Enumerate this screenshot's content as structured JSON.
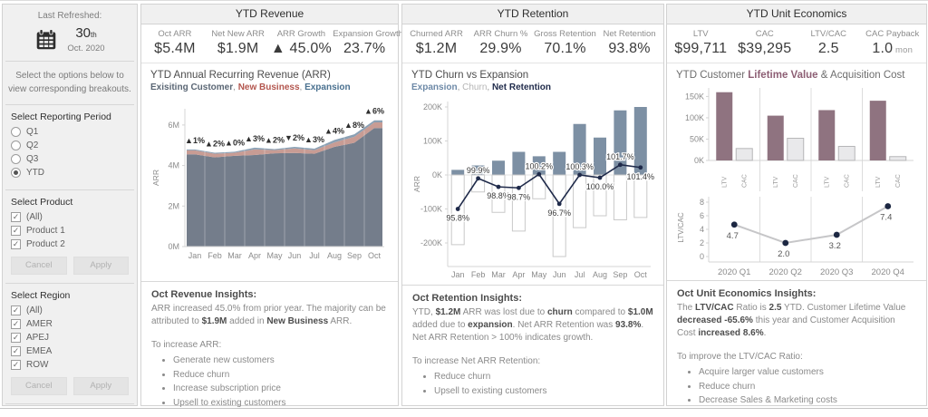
{
  "sidebar": {
    "last_refreshed_label": "Last Refreshed:",
    "date_day": "30",
    "date_suffix": "th",
    "date_rest": "Oct. 2020",
    "instruction": "Select the options below to view corresponding breakouts.",
    "reporting_period": {
      "label": "Select Reporting Period",
      "options": [
        {
          "label": "Q1",
          "selected": false
        },
        {
          "label": "Q2",
          "selected": false
        },
        {
          "label": "Q3",
          "selected": false
        },
        {
          "label": "YTD",
          "selected": true
        }
      ]
    },
    "product": {
      "label": "Select Product",
      "options": [
        {
          "label": "(All)",
          "checked": true
        },
        {
          "label": "Product 1",
          "checked": true
        },
        {
          "label": "Product 2",
          "checked": true
        }
      ],
      "cancel_label": "Cancel",
      "apply_label": "Apply"
    },
    "region": {
      "label": "Select Region",
      "options": [
        {
          "label": "(All)",
          "checked": true
        },
        {
          "label": "AMER",
          "checked": true
        },
        {
          "label": "APEJ",
          "checked": true
        },
        {
          "label": "EMEA",
          "checked": true
        },
        {
          "label": "ROW",
          "checked": true
        }
      ],
      "cancel_label": "Cancel",
      "apply_label": "Apply"
    }
  },
  "revenue_panel": {
    "title": "YTD Revenue",
    "kpis": [
      {
        "label": "Oct ARR",
        "value": "$5.4M"
      },
      {
        "label": "Net New ARR",
        "value": "$1.9M"
      },
      {
        "label": "ARR Growth",
        "value": "▲ 45.0%"
      },
      {
        "label": "Expansion Growth",
        "value": "23.7%"
      }
    ],
    "insights": {
      "heading": "Oct Revenue Insights:",
      "body": [
        {
          "t": "ARR increased 45.0% from prior year. The majority can be attributed to "
        },
        {
          "t": "$1.9M",
          "b": true
        },
        {
          "t": " added in "
        },
        {
          "t": "New Business",
          "b": true
        },
        {
          "t": " ARR."
        }
      ],
      "intro": "To increase ARR:",
      "bullets": [
        "Generate new customers",
        "Reduce churn",
        "Increase subscription price",
        "Upsell to existing customers"
      ]
    }
  },
  "retention_panel": {
    "title": "YTD Retention",
    "kpis": [
      {
        "label": "Churned ARR",
        "value": "$1.2M"
      },
      {
        "label": "ARR Churn %",
        "value": "29.9%"
      },
      {
        "label": "Gross Retention",
        "value": "70.1%"
      },
      {
        "label": "Net Retention",
        "value": "93.8%"
      }
    ],
    "insights": {
      "heading": "Oct Retention Insights:",
      "body": [
        {
          "t": "YTD, "
        },
        {
          "t": "$1.2M",
          "b": true
        },
        {
          "t": " ARR was lost due to "
        },
        {
          "t": "churn",
          "b": true
        },
        {
          "t": " compared to "
        },
        {
          "t": "$1.0M",
          "b": true
        },
        {
          "t": " added due to "
        },
        {
          "t": "expansion",
          "b": true
        },
        {
          "t": ". Net ARR Retention was "
        },
        {
          "t": "93.8%",
          "b": true
        },
        {
          "t": ". Net ARR Retention > 100% indicates growth."
        }
      ],
      "intro": "To increase Net ARR Retention:",
      "bullets": [
        "Reduce churn",
        "Upsell to existing customers"
      ]
    }
  },
  "unit_panel": {
    "title": "YTD Unit Economics",
    "kpis": [
      {
        "label": "LTV",
        "value": "$99,711"
      },
      {
        "label": "CAC",
        "value": "$39,295"
      },
      {
        "label": "LTV/CAC",
        "value": "2.5"
      },
      {
        "label": "CAC Payback",
        "value": "1.0",
        "unit": "mon"
      }
    ],
    "insights": {
      "heading": "Oct Unit Economics Insights:",
      "body": [
        {
          "t": "The "
        },
        {
          "t": "LTV/CAC",
          "b": true
        },
        {
          "t": " Ratio is "
        },
        {
          "t": "2.5",
          "b": true
        },
        {
          "t": " YTD. Customer Lifetime Value "
        },
        {
          "t": "decreased -65.6%",
          "b": true
        },
        {
          "t": " this year and Customer Acquisition Cost "
        },
        {
          "t": "increased 8.6%",
          "b": true
        },
        {
          "t": "."
        }
      ],
      "intro": "To improve the LTV/CAC Ratio:",
      "bullets": [
        "Acquire larger value customers",
        "Reduce churn",
        "Decrease Sales & Marketing costs"
      ]
    }
  },
  "chart_data": [
    {
      "id": "arr_stacked_area",
      "type": "area",
      "title": "YTD Annual Recurring Revenue (ARR)",
      "legend": [
        {
          "t": "Exisiting Customer",
          "c": "#5a6674",
          "b": true
        },
        {
          "t": ", ",
          "c": "#9a9a9a"
        },
        {
          "t": "New Business",
          "c": "#b3564e",
          "b": true
        },
        {
          "t": ", ",
          "c": "#9a9a9a"
        },
        {
          "t": "Expansion",
          "c": "#49708f",
          "b": true
        }
      ],
      "x": [
        "Jan",
        "Feb",
        "Mar",
        "Apr",
        "May",
        "Jun",
        "Jul",
        "Aug",
        "Sep",
        "Oct"
      ],
      "ylabel": "ARR",
      "yticks": [
        "0M",
        "2M",
        "4M",
        "6M"
      ],
      "ytick_values": [
        0,
        2,
        4,
        6
      ],
      "ylim": [
        0,
        6.8
      ],
      "series": [
        {
          "name": "Exisiting Customer",
          "color": "#747d8b",
          "values": [
            4.55,
            4.4,
            4.48,
            4.52,
            4.6,
            4.62,
            4.58,
            4.92,
            5.12,
            5.85
          ]
        },
        {
          "name": "New Business",
          "color": "#c89c94",
          "values": [
            0.2,
            0.18,
            0.15,
            0.28,
            0.16,
            0.22,
            0.18,
            0.22,
            0.3,
            0.28
          ]
        },
        {
          "name": "Expansion",
          "color": "#8aa0b4",
          "values": [
            0.04,
            0.05,
            0.05,
            0.08,
            0.05,
            0.08,
            0.07,
            0.12,
            0.12,
            0.1
          ]
        }
      ],
      "annotations": [
        "▲1%",
        "▲2%",
        "▲0%",
        "▲3%",
        "▲2%",
        "▼2%",
        "▲3%",
        "▲4%",
        "▲8%",
        "▲6%"
      ]
    },
    {
      "id": "churn_vs_expansion",
      "type": "bar+line",
      "title": "YTD Churn vs Expansion",
      "legend": [
        {
          "t": "Expansion",
          "c": "#6d89a7",
          "b": true
        },
        {
          "t": ", ",
          "c": "#9a9a9a"
        },
        {
          "t": "Churn",
          "c": "#b5b5b5"
        },
        {
          "t": ", ",
          "c": "#9a9a9a"
        },
        {
          "t": "Net Retention",
          "c": "#1f2a4a",
          "b": true
        }
      ],
      "x": [
        "Jan",
        "Feb",
        "Mar",
        "Apr",
        "May",
        "Jun",
        "Jul",
        "Aug",
        "Sep",
        "Oct"
      ],
      "ylabel": "ARR",
      "yticks": [
        "200K",
        "100K",
        "0K",
        "-100K",
        "-200K"
      ],
      "ytick_values": [
        200,
        100,
        0,
        -100,
        -200
      ],
      "ylim": [
        -265,
        230
      ],
      "expansion_k": [
        15,
        28,
        42,
        68,
        55,
        68,
        150,
        110,
        190,
        200
      ],
      "churn_k": [
        -205,
        -50,
        -110,
        -165,
        -70,
        -240,
        -155,
        -120,
        -132,
        -125
      ],
      "net_retention_k": [
        -100,
        -10,
        -35,
        -38,
        2,
        -85,
        0,
        -8,
        30,
        22
      ],
      "net_retention_labels": [
        "95.8%",
        "99.9%",
        "98.8%",
        "98.7%",
        "100.2%",
        "96.7%",
        "100.3%",
        "100.0%",
        "101.7%",
        "101.4%"
      ],
      "label_side": [
        "below",
        "above",
        "below",
        "below",
        "above",
        "below",
        "above",
        "below",
        "above",
        "below"
      ],
      "colors": {
        "expansion": "#7d90a4",
        "churn_fill": "#ffffff",
        "churn_border": "#c9c9c9",
        "line": "#1f2a4a"
      }
    },
    {
      "id": "ltv_cac_bars",
      "type": "bar",
      "title_segments": [
        {
          "t": "YTD Customer ",
          "c": "#6e6e6e"
        },
        {
          "t": "Lifetime Value",
          "c": "#8d5f74",
          "b": true
        },
        {
          "t": " & Acquisition Cost",
          "c": "#6e6e6e"
        }
      ],
      "categories": [
        "2020 Q1",
        "2020 Q2",
        "2020 Q3",
        "2020 Q4"
      ],
      "series": [
        {
          "name": "LTV",
          "color": "#8f7380",
          "values": [
            160,
            105,
            118,
            140
          ]
        },
        {
          "name": "CAC",
          "color": "#e9e9eb",
          "border": "#b5b5b7",
          "values": [
            28,
            52,
            33,
            9
          ]
        }
      ],
      "yticks": [
        "0K",
        "50K",
        "100K",
        "150K"
      ],
      "ytick_values": [
        0,
        50,
        100,
        150
      ],
      "ylim": [
        0,
        170
      ],
      "bar_sublabels": [
        "LTV",
        "CAC"
      ]
    },
    {
      "id": "ltv_cac_ratio",
      "type": "line",
      "categories": [
        "2020 Q1",
        "2020 Q2",
        "2020 Q3",
        "2020 Q4"
      ],
      "values": [
        4.7,
        2.0,
        3.2,
        7.4
      ],
      "labels": [
        "4.7",
        "2.0",
        "3.2",
        "7.4"
      ],
      "ylabel": "LTV/CAC",
      "yticks": [
        "0",
        "2",
        "4",
        "6",
        "8"
      ],
      "ytick_values": [
        0,
        2,
        4,
        6,
        8
      ],
      "ylim": [
        0,
        8.8
      ],
      "colors": {
        "line": "#c6c6c8",
        "marker": "#1c2742"
      }
    }
  ]
}
